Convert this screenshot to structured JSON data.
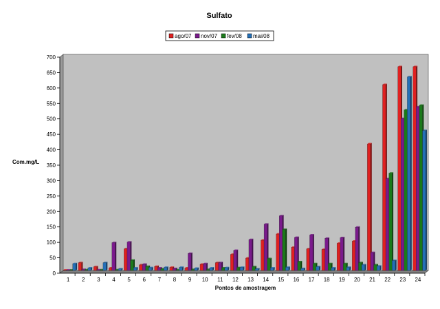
{
  "chart_data": {
    "type": "bar",
    "title": "Sulfato",
    "xlabel": "Pontos de amostragem",
    "ylabel": "Com.mg/L",
    "ylim": [
      0,
      700
    ],
    "y_ticks": [
      0,
      50,
      100,
      150,
      200,
      250,
      300,
      350,
      400,
      450,
      500,
      550,
      600,
      650,
      700
    ],
    "grid": false,
    "legend_position": "top-center",
    "plot_background": "#c0c0c0",
    "categories": [
      "1",
      "2",
      "3",
      "4",
      "5",
      "6",
      "7",
      "8",
      "9",
      "10",
      "11",
      "12",
      "13",
      "14",
      "15",
      "16",
      "17",
      "18",
      "19",
      "20",
      "21",
      "22",
      "23",
      "24"
    ],
    "series": [
      {
        "name": "ago/07",
        "color": "#e02020",
        "values": [
          1,
          25,
          12,
          8,
          70,
          18,
          13,
          10,
          8,
          20,
          25,
          52,
          40,
          98,
          118,
          75,
          70,
          68,
          88,
          95,
          410,
          602,
          660,
          660
        ]
      },
      {
        "name": "nov/07",
        "color": "#7a1a8c",
        "values": [
          1,
          3,
          2,
          90,
          92,
          20,
          8,
          6,
          55,
          22,
          25,
          65,
          100,
          150,
          177,
          107,
          115,
          104,
          106,
          140,
          58,
          297,
          492,
          530
        ]
      },
      {
        "name": "fev/08",
        "color": "#1a7a1a",
        "values": [
          1,
          2,
          2,
          2,
          33,
          13,
          5,
          2,
          3,
          3,
          8,
          9,
          12,
          38,
          133,
          28,
          22,
          22,
          22,
          25,
          18,
          315,
          520,
          535
        ]
      },
      {
        "name": "mai/08",
        "color": "#2470b8",
        "values": [
          22,
          8,
          25,
          5,
          8,
          9,
          10,
          10,
          7,
          8,
          9,
          10,
          5,
          8,
          10,
          6,
          12,
          8,
          10,
          18,
          14,
          32,
          627,
          453
        ]
      }
    ]
  }
}
